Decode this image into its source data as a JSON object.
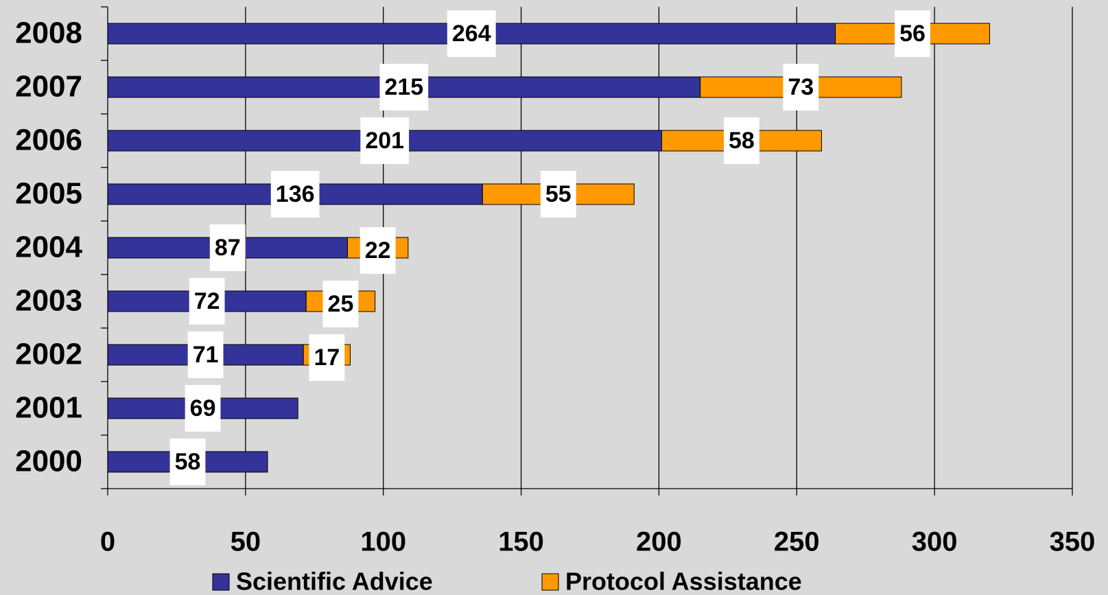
{
  "chart_data": {
    "type": "stacked-barh",
    "categories": [
      "2000",
      "2001",
      "2002",
      "2003",
      "2004",
      "2005",
      "2006",
      "2007",
      "2008"
    ],
    "series": [
      {
        "name": "Scientific Advice",
        "color": "#333399",
        "values": [
          58,
          69,
          71,
          72,
          87,
          136,
          201,
          215,
          264
        ]
      },
      {
        "name": "Protocol Assistance",
        "color": "#ff9900",
        "values": [
          null,
          null,
          17,
          25,
          22,
          55,
          58,
          73,
          56
        ]
      }
    ],
    "xlim": [
      0,
      350
    ],
    "xticks": [
      0,
      50,
      100,
      150,
      200,
      250,
      300,
      350
    ],
    "grid": true,
    "legend": "bottom"
  }
}
